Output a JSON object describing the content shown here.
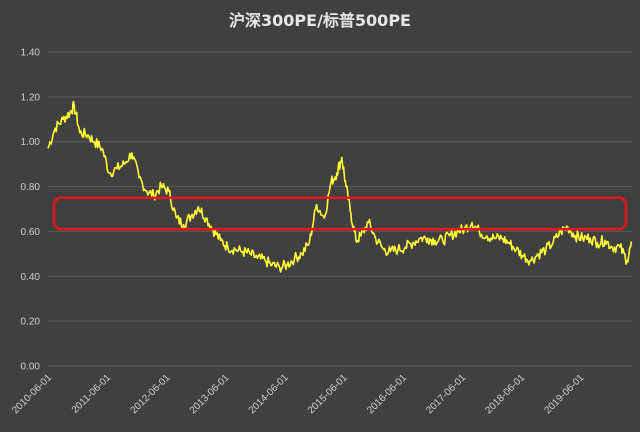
{
  "chart_data": {
    "type": "line",
    "title": "沪深300PE/标普500PE",
    "xlabel": "",
    "ylabel": "",
    "ylim": [
      0,
      1.4
    ],
    "y_ticks": [
      "0.00",
      "0.20",
      "0.40",
      "0.60",
      "0.80",
      "1.00",
      "1.20",
      "1.40"
    ],
    "x_ticks": [
      "2010-06-01",
      "2011-06-01",
      "2012-06-01",
      "2013-06-01",
      "2014-06-01",
      "2015-06-01",
      "2016-06-01",
      "2017-06-01",
      "2018-06-01",
      "2019-06-01"
    ],
    "xlim": [
      "2010-06-01",
      "2020-04-15"
    ],
    "grid": true,
    "legend": "none",
    "series_color": "#ffff33",
    "highlight_band": {
      "y_range": [
        0.61,
        0.75
      ],
      "color": "#e8161b"
    },
    "series": [
      {
        "x": [
          "2010-06-01",
          "2010-07-15",
          "2010-09-01",
          "2010-10-15",
          "2010-11-10",
          "2010-12-15",
          "2011-02-01",
          "2011-03-15",
          "2011-05-01",
          "2011-06-15",
          "2011-08-01",
          "2011-09-15",
          "2011-11-01",
          "2011-12-15",
          "2012-02-01",
          "2012-03-15",
          "2012-05-01",
          "2012-06-15",
          "2012-08-01",
          "2012-09-15",
          "2012-11-01",
          "2012-12-15",
          "2013-02-01",
          "2013-03-15",
          "2013-05-01",
          "2013-06-15",
          "2013-08-01",
          "2013-09-15",
          "2013-11-01",
          "2013-12-15",
          "2014-02-01",
          "2014-03-15",
          "2014-05-01",
          "2014-06-15",
          "2014-08-01",
          "2014-09-15",
          "2014-11-01",
          "2014-12-15",
          "2015-02-01",
          "2015-03-15",
          "2015-04-20",
          "2015-05-20",
          "2015-06-15",
          "2015-07-15",
          "2015-08-15",
          "2015-09-15",
          "2015-11-01",
          "2015-12-15",
          "2016-02-01",
          "2016-03-15",
          "2016-05-01",
          "2016-06-15",
          "2016-08-01",
          "2016-09-15",
          "2016-11-01",
          "2016-12-15",
          "2017-02-01",
          "2017-03-15",
          "2017-05-01",
          "2017-06-15",
          "2017-08-01",
          "2017-09-15",
          "2017-11-01",
          "2017-12-15",
          "2018-02-01",
          "2018-03-15",
          "2018-05-01",
          "2018-06-15",
          "2018-08-01",
          "2018-09-15",
          "2018-11-01",
          "2018-12-15",
          "2019-02-01",
          "2019-03-15",
          "2019-05-01",
          "2019-06-15",
          "2019-08-01",
          "2019-09-15",
          "2019-11-01",
          "2019-12-15",
          "2020-02-01",
          "2020-03-15",
          "2020-04-15"
        ],
        "values": [
          0.97,
          1.06,
          1.1,
          1.13,
          1.16,
          1.04,
          1.03,
          1.0,
          0.97,
          0.86,
          0.88,
          0.9,
          0.95,
          0.84,
          0.78,
          0.76,
          0.8,
          0.78,
          0.66,
          0.63,
          0.67,
          0.71,
          0.66,
          0.61,
          0.56,
          0.53,
          0.52,
          0.51,
          0.5,
          0.48,
          0.47,
          0.45,
          0.44,
          0.45,
          0.48,
          0.5,
          0.55,
          0.72,
          0.66,
          0.82,
          0.86,
          0.93,
          0.8,
          0.68,
          0.56,
          0.58,
          0.64,
          0.57,
          0.52,
          0.51,
          0.52,
          0.53,
          0.55,
          0.57,
          0.57,
          0.56,
          0.56,
          0.58,
          0.6,
          0.61,
          0.64,
          0.6,
          0.58,
          0.57,
          0.57,
          0.55,
          0.52,
          0.49,
          0.47,
          0.5,
          0.52,
          0.55,
          0.6,
          0.62,
          0.58,
          0.57,
          0.57,
          0.55,
          0.56,
          0.53,
          0.53,
          0.47,
          0.55
        ]
      }
    ]
  }
}
